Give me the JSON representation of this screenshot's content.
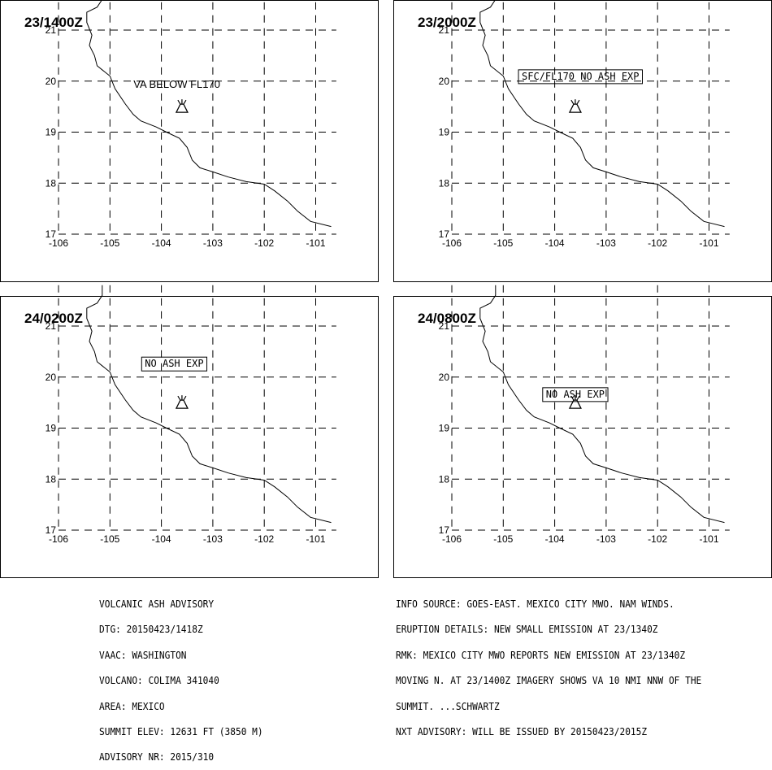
{
  "panels": [
    {
      "time": "23/1400Z",
      "label": "VA BELOW FL170",
      "boxed": false,
      "label_lon": -103.7,
      "label_lat": 19.87
    },
    {
      "time": "23/2000Z",
      "label": "SFC/FL170 NO ASH EXP",
      "boxed": true,
      "label_lon": -103.5,
      "label_lat": 20.03
    },
    {
      "time": "24/0200Z",
      "label": "NO ASH EXP",
      "boxed": true,
      "label_lon": -103.75,
      "label_lat": 20.2
    },
    {
      "time": "24/0800Z",
      "label": "NO ASH EXP",
      "boxed": true,
      "label_lon": -103.6,
      "label_lat": 19.6
    }
  ],
  "map": {
    "lon_ticks": [
      "-106",
      "-105",
      "-104",
      "-103",
      "-102",
      "-101"
    ],
    "lat_ticks": [
      "21",
      "20",
      "19",
      "18",
      "17"
    ],
    "lon_range": [
      -106,
      -100.6
    ],
    "lat_range": [
      17,
      21.8
    ],
    "volcano": {
      "lon": -103.6,
      "lat": 19.5,
      "icon": "volcano-icon"
    },
    "coastline": [
      [
        -105.15,
        21.8
      ],
      [
        -105.15,
        21.6
      ],
      [
        -105.25,
        21.45
      ],
      [
        -105.45,
        21.35
      ],
      [
        -105.45,
        21.15
      ],
      [
        -105.35,
        20.9
      ],
      [
        -105.4,
        20.7
      ],
      [
        -105.3,
        20.5
      ],
      [
        -105.25,
        20.3
      ],
      [
        -105.0,
        20.1
      ],
      [
        -104.9,
        19.85
      ],
      [
        -104.7,
        19.55
      ],
      [
        -104.55,
        19.35
      ],
      [
        -104.4,
        19.22
      ],
      [
        -104.1,
        19.1
      ],
      [
        -103.9,
        19.0
      ],
      [
        -103.65,
        18.88
      ],
      [
        -103.5,
        18.7
      ],
      [
        -103.4,
        18.45
      ],
      [
        -103.25,
        18.3
      ],
      [
        -103.0,
        18.22
      ],
      [
        -102.7,
        18.12
      ],
      [
        -102.35,
        18.03
      ],
      [
        -102.0,
        17.98
      ],
      [
        -101.8,
        17.85
      ],
      [
        -101.55,
        17.65
      ],
      [
        -101.35,
        17.45
      ],
      [
        -101.1,
        17.25
      ],
      [
        -100.7,
        17.15
      ]
    ]
  },
  "info_left": [
    "VOLCANIC ASH ADVISORY",
    "DTG: 20150423/1418Z",
    "VAAC: WASHINGTON",
    "VOLCANO: COLIMA 341040",
    "AREA: MEXICO",
    "SUMMIT ELEV: 12631 FT (3850 M)",
    "ADVISORY NR: 2015/310"
  ],
  "info_right": [
    "INFO SOURCE: GOES-EAST. MEXICO CITY MWO. NAM WINDS.",
    "ERUPTION DETAILS: NEW SMALL EMISSION AT 23/1340Z",
    "RMK: MEXICO CITY MWO REPORTS NEW EMISSION AT 23/1340Z",
    "MOVING N. AT 23/1400Z IMAGERY SHOWS VA 10 NMI NNW OF THE",
    "SUMMIT. ...SCHWARTZ",
    "NXT ADVISORY: WILL BE ISSUED BY 20150423/2015Z"
  ]
}
